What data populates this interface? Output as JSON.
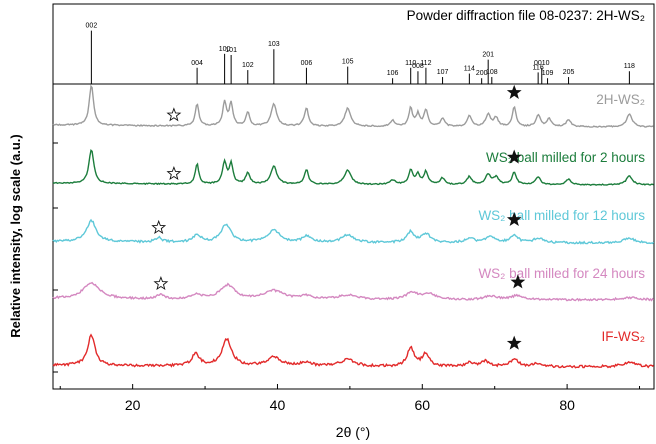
{
  "chart_data": {
    "type": "line",
    "xlabel": "2θ (°)",
    "ylabel": "Relative intensity, log scale (a.u.)",
    "xlim": [
      9,
      92
    ],
    "x_ticks": [
      20,
      40,
      60,
      80
    ],
    "reference": {
      "title": "Powder diffraction file 08-0237: 2H-WS₂",
      "peaks": [
        {
          "label": "002",
          "x": 14.3,
          "h": 0.92
        },
        {
          "label": "004",
          "x": 28.9,
          "h": 0.28
        },
        {
          "label": "100",
          "x": 32.7,
          "h": 0.52
        },
        {
          "label": "101",
          "x": 33.6,
          "h": 0.5
        },
        {
          "label": "102",
          "x": 35.9,
          "h": 0.24
        },
        {
          "label": "103",
          "x": 39.5,
          "h": 0.6
        },
        {
          "label": "006",
          "x": 44.0,
          "h": 0.28
        },
        {
          "label": "105",
          "x": 49.7,
          "h": 0.3
        },
        {
          "label": "106",
          "x": 55.9,
          "h": 0.1
        },
        {
          "label": "110",
          "x": 58.4,
          "h": 0.28
        },
        {
          "label": "008",
          "x": 59.4,
          "h": 0.22
        },
        {
          "label": "112",
          "x": 60.5,
          "h": 0.28
        },
        {
          "label": "107",
          "x": 62.8,
          "h": 0.12
        },
        {
          "label": "114",
          "x": 66.5,
          "h": 0.18
        },
        {
          "label": "200",
          "x": 68.2,
          "h": 0.1
        },
        {
          "label": "201",
          "x": 69.1,
          "h": 0.42
        },
        {
          "label": "108",
          "x": 69.6,
          "h": 0.12
        },
        {
          "label": "116",
          "x": 76.0,
          "h": 0.2
        },
        {
          "label": "0010",
          "x": 76.5,
          "h": 0.28
        },
        {
          "label": "109",
          "x": 77.3,
          "h": 0.1
        },
        {
          "label": "205",
          "x": 80.2,
          "h": 0.12
        },
        {
          "label": "118",
          "x": 88.6,
          "h": 0.22
        }
      ]
    },
    "series": [
      {
        "name": "2H-WS₂",
        "color": "#9c9c9c",
        "star": {
          "filled": false,
          "x": 25.7
        },
        "star2": {
          "filled": true,
          "x": 72.7
        },
        "peaks": [
          [
            14.3,
            1.0,
            0.35
          ],
          [
            28.9,
            0.55,
            0.3
          ],
          [
            32.7,
            0.6,
            0.3
          ],
          [
            33.6,
            0.55,
            0.3
          ],
          [
            35.9,
            0.35,
            0.3
          ],
          [
            39.5,
            0.55,
            0.45
          ],
          [
            44.0,
            0.45,
            0.35
          ],
          [
            49.7,
            0.45,
            0.5
          ],
          [
            55.9,
            0.15,
            0.4
          ],
          [
            58.4,
            0.45,
            0.3
          ],
          [
            59.4,
            0.3,
            0.3
          ],
          [
            60.5,
            0.4,
            0.35
          ],
          [
            62.8,
            0.2,
            0.35
          ],
          [
            66.5,
            0.28,
            0.35
          ],
          [
            69.1,
            0.3,
            0.4
          ],
          [
            70.2,
            0.22,
            0.35
          ],
          [
            72.7,
            0.5,
            0.3
          ],
          [
            76.0,
            0.3,
            0.35
          ],
          [
            77.5,
            0.2,
            0.35
          ],
          [
            80.2,
            0.18,
            0.4
          ],
          [
            88.6,
            0.32,
            0.45
          ]
        ]
      },
      {
        "name": "WS₂ ball milled for 2 hours",
        "color": "#1c7d3c",
        "star": {
          "filled": false,
          "x": 25.7
        },
        "star2": {
          "filled": true,
          "x": 72.7
        },
        "peaks": [
          [
            14.3,
            0.95,
            0.4
          ],
          [
            28.9,
            0.55,
            0.3
          ],
          [
            32.7,
            0.6,
            0.35
          ],
          [
            33.6,
            0.55,
            0.3
          ],
          [
            35.9,
            0.3,
            0.35
          ],
          [
            39.5,
            0.5,
            0.5
          ],
          [
            44.0,
            0.4,
            0.35
          ],
          [
            49.7,
            0.4,
            0.55
          ],
          [
            55.9,
            0.12,
            0.45
          ],
          [
            58.4,
            0.4,
            0.35
          ],
          [
            59.4,
            0.28,
            0.3
          ],
          [
            60.5,
            0.35,
            0.35
          ],
          [
            62.8,
            0.18,
            0.4
          ],
          [
            66.5,
            0.22,
            0.4
          ],
          [
            69.1,
            0.28,
            0.45
          ],
          [
            70.2,
            0.2,
            0.4
          ],
          [
            72.7,
            0.35,
            0.35
          ],
          [
            76.0,
            0.22,
            0.4
          ],
          [
            80.2,
            0.15,
            0.45
          ],
          [
            88.6,
            0.25,
            0.5
          ]
        ]
      },
      {
        "name": "WS₂ ball milled for 12 hours",
        "color": "#5ec8d8",
        "star": {
          "filled": false,
          "x": 23.6
        },
        "star2": {
          "filled": true,
          "x": 72.7
        },
        "peaks": [
          [
            14.3,
            0.7,
            0.8
          ],
          [
            23.6,
            0.15,
            0.5
          ],
          [
            28.9,
            0.25,
            0.6
          ],
          [
            32.9,
            0.6,
            0.8
          ],
          [
            39.5,
            0.4,
            1.0
          ],
          [
            44.0,
            0.2,
            0.7
          ],
          [
            49.7,
            0.25,
            1.0
          ],
          [
            58.4,
            0.35,
            0.6
          ],
          [
            60.5,
            0.3,
            0.7
          ],
          [
            66.5,
            0.15,
            0.7
          ],
          [
            69.5,
            0.2,
            0.8
          ],
          [
            72.7,
            0.25,
            0.6
          ],
          [
            76.0,
            0.15,
            0.8
          ],
          [
            88.6,
            0.15,
            1.0
          ]
        ]
      },
      {
        "name": "WS₂ ball milled for 24 hours",
        "color": "#d488c0",
        "star": {
          "filled": false,
          "x": 23.9
        },
        "star2": {
          "filled": true,
          "x": 73.2
        },
        "peaks": [
          [
            14.3,
            0.55,
            1.4
          ],
          [
            23.8,
            0.15,
            0.6
          ],
          [
            28.9,
            0.15,
            0.8
          ],
          [
            33.1,
            0.5,
            1.2
          ],
          [
            39.5,
            0.3,
            1.6
          ],
          [
            44.0,
            0.12,
            1.0
          ],
          [
            49.7,
            0.15,
            1.5
          ],
          [
            58.6,
            0.25,
            1.0
          ],
          [
            61.0,
            0.2,
            1.0
          ],
          [
            69.5,
            0.12,
            1.2
          ],
          [
            73.2,
            0.15,
            1.0
          ],
          [
            88.6,
            0.08,
            1.5
          ]
        ]
      },
      {
        "name": "IF-WS₂",
        "color": "#e22a2a",
        "star": null,
        "star2": {
          "filled": true,
          "x": 72.7
        },
        "peaks": [
          [
            14.3,
            0.85,
            0.6
          ],
          [
            28.7,
            0.35,
            0.6
          ],
          [
            33.0,
            0.75,
            0.8
          ],
          [
            39.5,
            0.25,
            1.2
          ],
          [
            44.0,
            0.12,
            0.8
          ],
          [
            49.7,
            0.2,
            1.2
          ],
          [
            58.4,
            0.5,
            0.6
          ],
          [
            60.5,
            0.35,
            0.6
          ],
          [
            66.5,
            0.1,
            0.7
          ],
          [
            68.7,
            0.15,
            0.8
          ],
          [
            72.7,
            0.22,
            0.6
          ],
          [
            76.0,
            0.1,
            0.8
          ],
          [
            88.6,
            0.12,
            1.2
          ]
        ]
      }
    ]
  }
}
